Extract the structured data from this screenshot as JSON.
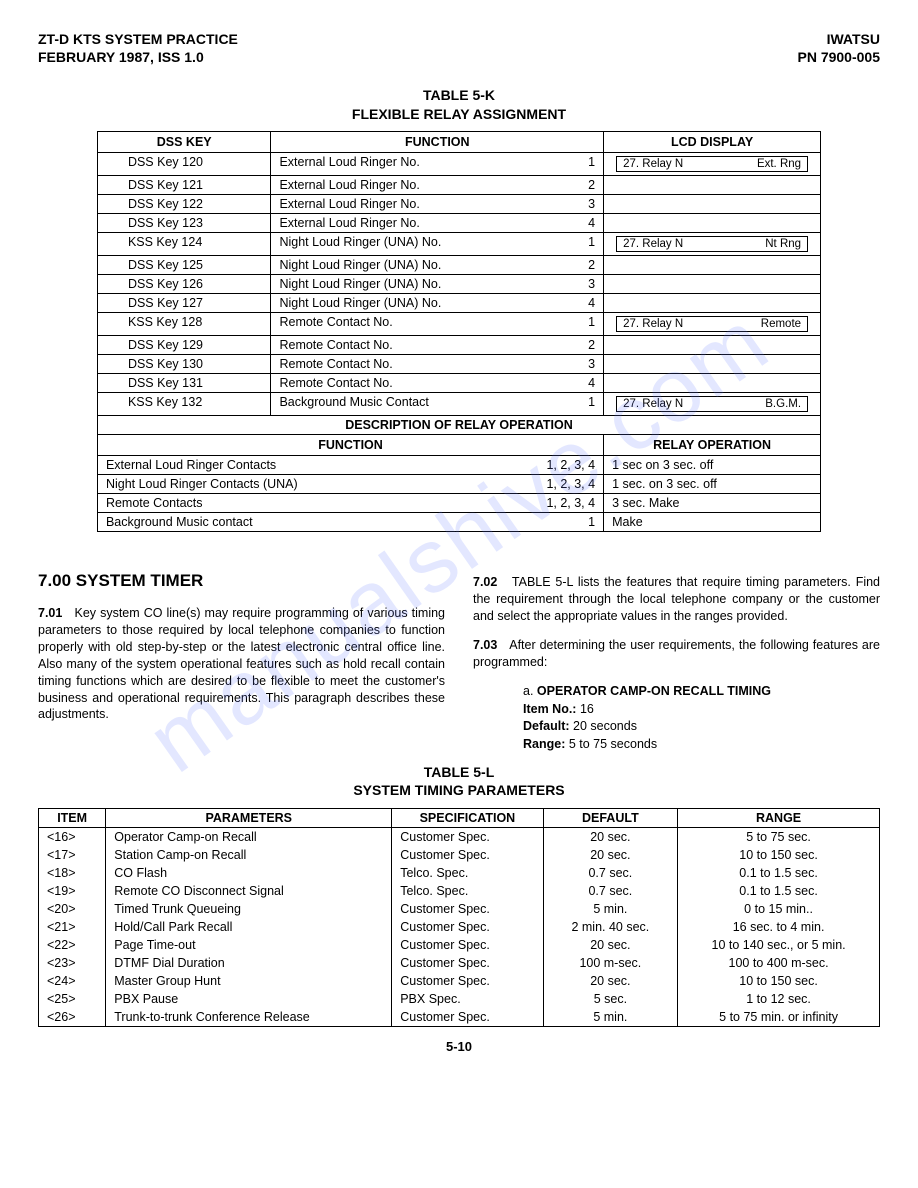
{
  "header": {
    "left1": "ZT-D KTS SYSTEM PRACTICE",
    "left2": "FEBRUARY 1987, ISS 1.0",
    "right1": "IWATSU",
    "right2": "PN 7900-005"
  },
  "table5k": {
    "title_line1": "TABLE 5-K",
    "title_line2": "FLEXIBLE RELAY ASSIGNMENT",
    "headers": {
      "dss": "DSS KEY",
      "func": "FUNCTION",
      "lcd": "LCD DISPLAY"
    },
    "rows": [
      {
        "dss": "DSS Key 120",
        "func": "External Loud Ringer No.",
        "num": "1",
        "lcd_left": "27. Relay N",
        "lcd_right": "Ext. Rng"
      },
      {
        "dss": "DSS Key 121",
        "func": "External Loud Ringer No.",
        "num": "2"
      },
      {
        "dss": "DSS Key 122",
        "func": "External Loud Ringer No.",
        "num": "3"
      },
      {
        "dss": "DSS Key 123",
        "func": "External Loud Ringer No.",
        "num": "4"
      },
      {
        "dss": "KSS Key 124",
        "func": "Night Loud Ringer (UNA) No.",
        "num": "1",
        "lcd_left": "27. Relay N",
        "lcd_right": "Nt Rng"
      },
      {
        "dss": "DSS Key 125",
        "func": "Night Loud Ringer (UNA) No.",
        "num": "2"
      },
      {
        "dss": "DSS Key 126",
        "func": "Night Loud Ringer (UNA) No.",
        "num": "3"
      },
      {
        "dss": "DSS Key 127",
        "func": "Night Loud Ringer (UNA) No.",
        "num": "4"
      },
      {
        "dss": "KSS Key 128",
        "func": "Remote Contact No.",
        "num": "1",
        "lcd_left": "27. Relay N",
        "lcd_right": "Remote"
      },
      {
        "dss": "DSS Key 129",
        "func": "Remote Contact No.",
        "num": "2"
      },
      {
        "dss": "DSS Key 130",
        "func": "Remote Contact No.",
        "num": "3"
      },
      {
        "dss": "DSS Key 131",
        "func": "Remote Contact No.",
        "num": "4"
      },
      {
        "dss": "KSS Key 132",
        "func": "Background Music Contact",
        "num": "1",
        "lcd_left": "27. Relay N",
        "lcd_right": "B.G.M."
      }
    ],
    "desc_header": "DESCRIPTION OF RELAY OPERATION",
    "desc_cols": {
      "func": "FUNCTION",
      "relay": "RELAY OPERATION"
    },
    "desc_rows": [
      {
        "func": "External Loud Ringer Contacts",
        "nums": "1, 2, 3, 4",
        "relay": "1 sec on 3 sec. off"
      },
      {
        "func": "Night Loud Ringer Contacts (UNA)",
        "nums": "1, 2, 3, 4",
        "relay": "1 sec. on 3 sec. off"
      },
      {
        "func": "Remote Contacts",
        "nums": "1, 2, 3, 4",
        "relay": "3 sec. Make"
      },
      {
        "func": "Background Music contact",
        "nums": "1",
        "relay": "Make"
      }
    ]
  },
  "section": {
    "heading": "7.00  SYSTEM TIMER",
    "p701_num": "7.01",
    "p701": "Key system CO line(s) may require programming of various timing parameters to those required by local telephone companies to function properly with old step-by-step or the latest electronic central office line. Also many of the system operational features such as hold recall contain timing functions which are desired to be flexible to meet the customer's business and operational requirements. This paragraph describes these adjustments.",
    "p702_num": "7.02",
    "p702": "TABLE 5-L lists the features that require timing parameters. Find the requirement through the local telephone company or the customer and select the appropriate values in the ranges provided.",
    "p703_num": "7.03",
    "p703": "After determining the user requirements, the following features are programmed:",
    "sub_a_label": "a.",
    "sub_a_title": "OPERATOR CAMP-ON RECALL TIMING",
    "sub_a_item_label": "Item No.:",
    "sub_a_item": "16",
    "sub_a_default_label": "Default:",
    "sub_a_default": "20 seconds",
    "sub_a_range_label": "Range:",
    "sub_a_range": "5 to 75 seconds"
  },
  "table5l": {
    "title_line1": "TABLE 5-L",
    "title_line2": "SYSTEM TIMING PARAMETERS",
    "headers": {
      "item": "ITEM",
      "param": "PARAMETERS",
      "spec": "SPECIFICATION",
      "def": "DEFAULT",
      "range": "RANGE"
    },
    "rows": [
      {
        "item": "<16>",
        "param": "Operator Camp-on Recall",
        "spec": "Customer Spec.",
        "def": "20 sec.",
        "range": "5 to   75 sec."
      },
      {
        "item": "<17>",
        "param": "Station Camp-on Recall",
        "spec": "Customer Spec.",
        "def": "20 sec.",
        "range": "10 to 150 sec."
      },
      {
        "item": "<18>",
        "param": "CO Flash",
        "spec": "Telco. Spec.",
        "def": "0.7 sec.",
        "range": "0.1 to  1.5 sec."
      },
      {
        "item": "<19>",
        "param": "Remote CO Disconnect Signal",
        "spec": "Telco. Spec.",
        "def": "0.7 sec.",
        "range": "0.1 to  1.5 sec."
      },
      {
        "item": "<20>",
        "param": "Timed Trunk Queueing",
        "spec": "Customer Spec.",
        "def": "5 min.",
        "range": "0 to  15 min.."
      },
      {
        "item": "<21>",
        "param": "Hold/Call Park Recall",
        "spec": "Customer Spec.",
        "def": "2 min. 40 sec.",
        "range": "16 sec. to 4 min."
      },
      {
        "item": "<22>",
        "param": "Page Time-out",
        "spec": "Customer Spec.",
        "def": "20 sec.",
        "range": "10 to 140 sec., or 5 min."
      },
      {
        "item": "<23>",
        "param": "DTMF Dial Duration",
        "spec": "Customer Spec.",
        "def": "100 m-sec.",
        "range": "100 to 400 m-sec."
      },
      {
        "item": "<24>",
        "param": "Master Group Hunt",
        "spec": "Customer Spec.",
        "def": "20 sec.",
        "range": "10 to 150 sec."
      },
      {
        "item": "<25>",
        "param": "PBX Pause",
        "spec": "PBX Spec.",
        "def": "5 sec.",
        "range": "1 to   12 sec."
      },
      {
        "item": "<26>",
        "param": "Trunk-to-trunk Conference Release",
        "spec": "Customer Spec.",
        "def": "5 min.",
        "range": "5 to 75 min. or infinity"
      }
    ]
  },
  "page_number": "5-10",
  "watermark": "manualshive.com"
}
